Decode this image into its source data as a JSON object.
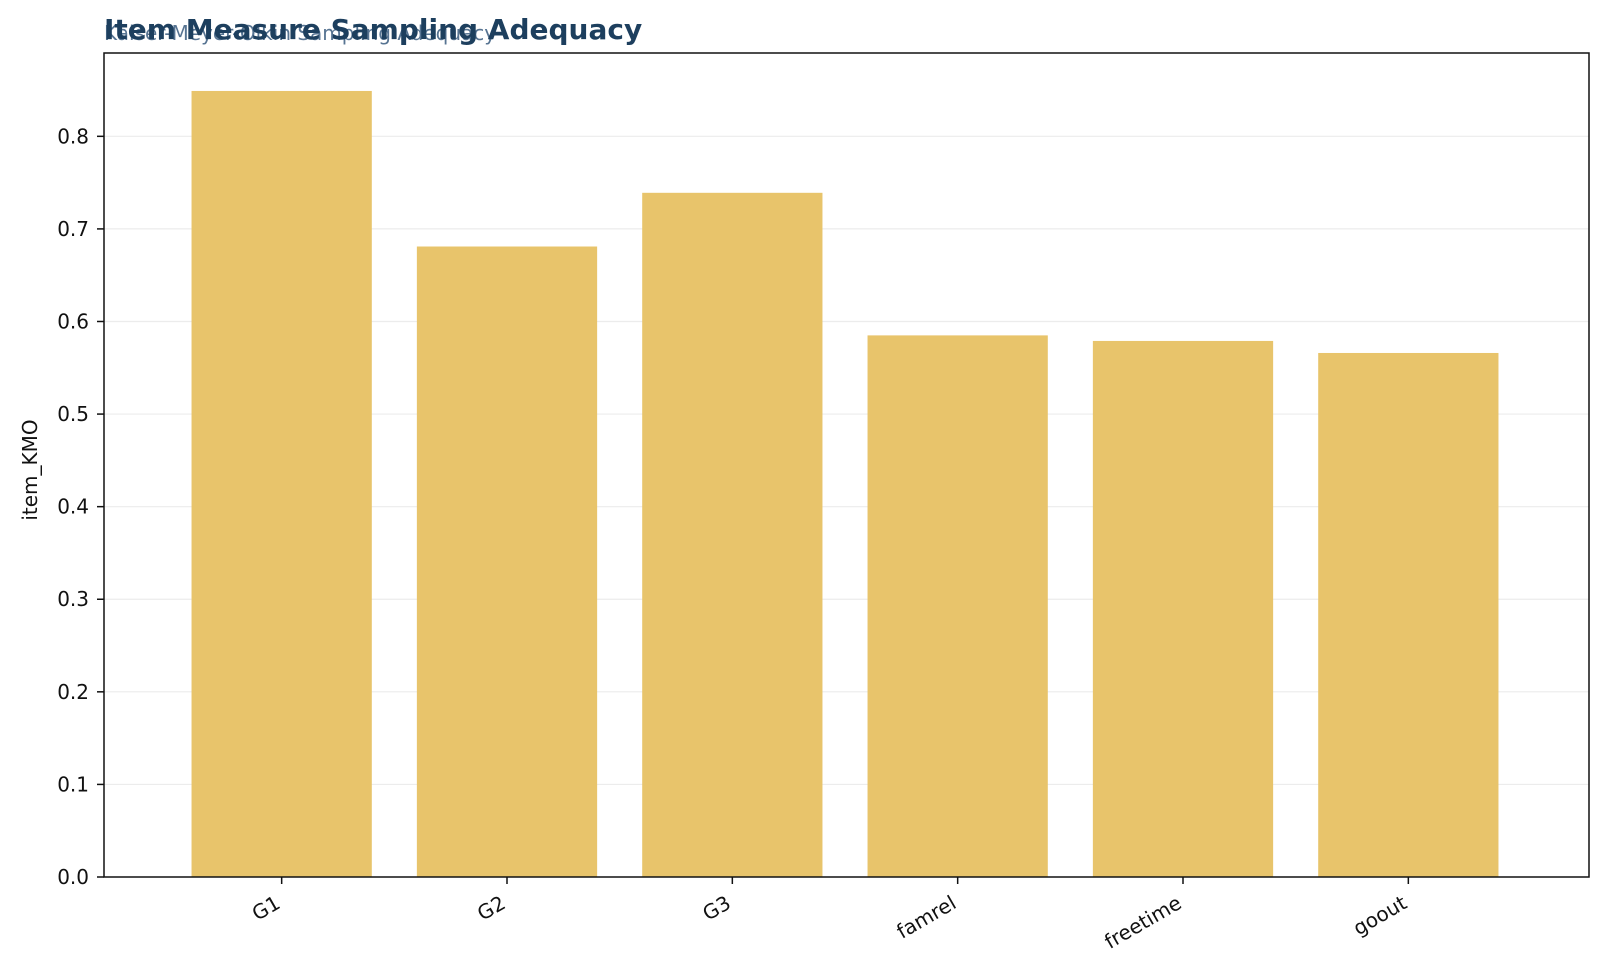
{
  "chart_data": {
    "type": "bar",
    "title": "Item Measure Sampling Adequacy",
    "subtitle": "Kaiser-Meyer-Olkin Sampling Adequacy",
    "xlabel": "",
    "ylabel": "item_KMO",
    "categories": [
      "G1",
      "G2",
      "G3",
      "famrel",
      "freetime",
      "goout"
    ],
    "values": [
      0.849,
      0.681,
      0.739,
      0.585,
      0.579,
      0.566
    ],
    "ylim": [
      0,
      0.89
    ],
    "yticks": [
      0.0,
      0.1,
      0.2,
      0.3,
      0.4,
      0.5,
      0.6,
      0.7,
      0.8
    ],
    "ytick_labels": [
      "0.0",
      "0.1",
      "0.2",
      "0.3",
      "0.4",
      "0.5",
      "0.6",
      "0.7",
      "0.8"
    ],
    "grid": "horizontal",
    "legend": "none"
  },
  "colors": {
    "bar": "#e8c46b",
    "title": "#1d3f5e",
    "subtitle": "#4f6d8d",
    "grid": "#ececec",
    "axis": "#111111"
  }
}
